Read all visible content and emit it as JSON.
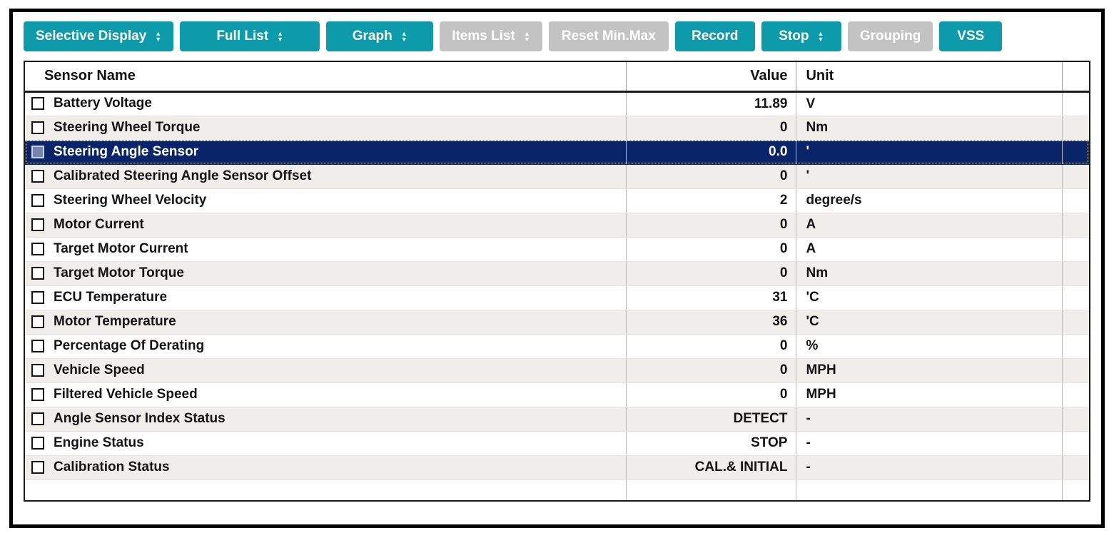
{
  "toolbar": {
    "buttons": [
      {
        "label": "Selective Display",
        "spinner": true,
        "enabled": true
      },
      {
        "label": "Full List",
        "spinner": true,
        "enabled": true
      },
      {
        "label": "Graph",
        "spinner": true,
        "enabled": true
      },
      {
        "label": "Items List",
        "spinner": true,
        "enabled": false
      },
      {
        "label": "Reset Min.Max",
        "spinner": false,
        "enabled": false
      },
      {
        "label": "Record",
        "spinner": false,
        "enabled": true
      },
      {
        "label": "Stop",
        "spinner": true,
        "enabled": true
      },
      {
        "label": "Grouping",
        "spinner": false,
        "enabled": false
      },
      {
        "label": "VSS",
        "spinner": false,
        "enabled": true
      }
    ]
  },
  "icons": {
    "spinner_up": "▲",
    "spinner_down": "▼"
  },
  "table": {
    "headers": {
      "name": "Sensor Name",
      "value": "Value",
      "unit": "Unit"
    },
    "rows": [
      {
        "name": "Battery Voltage",
        "value": "11.89",
        "unit": "V",
        "selected": false,
        "checked": false
      },
      {
        "name": "Steering Wheel Torque",
        "value": "0",
        "unit": "Nm",
        "selected": false,
        "checked": false
      },
      {
        "name": "Steering Angle Sensor",
        "value": "0.0",
        "unit": "'",
        "selected": true,
        "checked": false
      },
      {
        "name": "Calibrated Steering Angle Sensor Offset",
        "value": "0",
        "unit": "'",
        "selected": false,
        "checked": false
      },
      {
        "name": "Steering Wheel Velocity",
        "value": "2",
        "unit": "degree/s",
        "selected": false,
        "checked": false
      },
      {
        "name": "Motor Current",
        "value": "0",
        "unit": "A",
        "selected": false,
        "checked": false
      },
      {
        "name": "Target Motor Current",
        "value": "0",
        "unit": "A",
        "selected": false,
        "checked": false
      },
      {
        "name": "Target Motor Torque",
        "value": "0",
        "unit": "Nm",
        "selected": false,
        "checked": false
      },
      {
        "name": "ECU Temperature",
        "value": "31",
        "unit": "'C",
        "selected": false,
        "checked": false
      },
      {
        "name": "Motor Temperature",
        "value": "36",
        "unit": "'C",
        "selected": false,
        "checked": false
      },
      {
        "name": "Percentage Of Derating",
        "value": "0",
        "unit": "%",
        "selected": false,
        "checked": false
      },
      {
        "name": "Vehicle Speed",
        "value": "0",
        "unit": "MPH",
        "selected": false,
        "checked": false
      },
      {
        "name": "Filtered Vehicle Speed",
        "value": "0",
        "unit": "MPH",
        "selected": false,
        "checked": false
      },
      {
        "name": "Angle Sensor Index Status",
        "value": "DETECT",
        "unit": "-",
        "selected": false,
        "checked": false
      },
      {
        "name": "Engine Status",
        "value": "STOP",
        "unit": "-",
        "selected": false,
        "checked": false
      },
      {
        "name": "Calibration Status",
        "value": "CAL.& INITIAL",
        "unit": "-",
        "selected": false,
        "checked": false
      }
    ]
  },
  "colors": {
    "accent_teal": "#0d9aab",
    "disabled_gray": "#c3c3c3",
    "selected_row_bg": "#0a246a",
    "row_alt_bg": "#efeeea",
    "frame_border": "#000000"
  }
}
